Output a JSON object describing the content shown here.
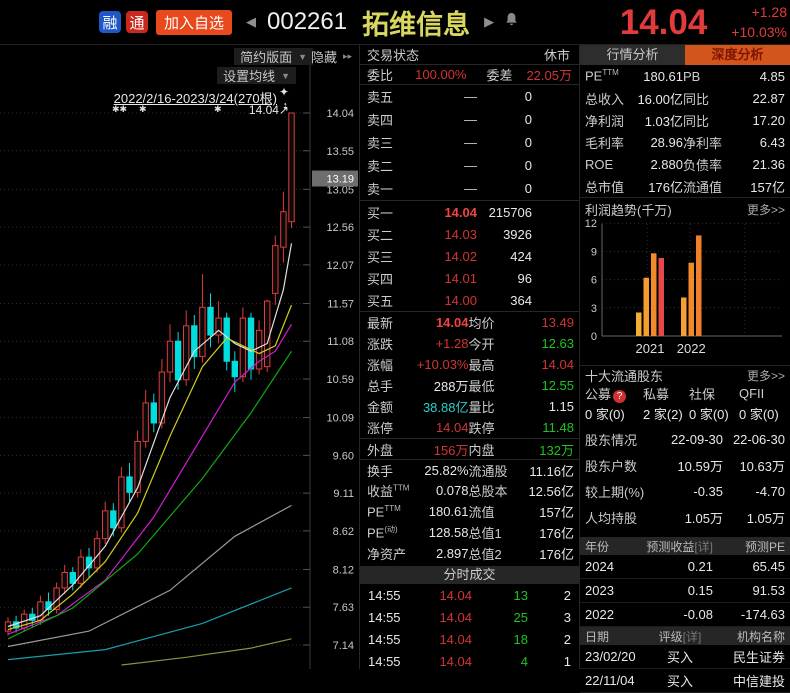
{
  "top_bar": {
    "badge_rong": "融",
    "badge_tong": "通",
    "add_watchlist": "加入自选",
    "prev_arrow": "◀",
    "next_arrow": "▶",
    "stock_code": "002261",
    "stock_name": "拓维信息",
    "price": "14.04",
    "change": "+1.28",
    "change_pct": "+10.03%"
  },
  "chart_panel": {
    "layout_btn": "简约版面",
    "layout_caret": "▼",
    "hide_btn": "隐藏",
    "hide_caret": "▸▸",
    "ma_btn": "设置均线",
    "ma_caret": "▼",
    "range_label": "2022/2/16-2023/3/24(270根)",
    "price_tag": "14.04↗",
    "star1": "✱✱",
    "star2": "✱",
    "star3": "✱",
    "sparkle": "✦",
    "updown": "↕"
  },
  "chart_data": [
    {
      "type": "candlestick",
      "title": "002261 拓维信息 日K 2022/2/16-2023/3/24(270根)",
      "ylim": [
        7.14,
        14.04
      ],
      "yticks": [
        14.04,
        13.55,
        13.05,
        12.56,
        12.07,
        11.57,
        11.08,
        10.59,
        10.09,
        9.6,
        9.11,
        8.62,
        8.12,
        7.63,
        7.14
      ],
      "axis_highlight": "13.19",
      "last_price_label": "14.04↗",
      "candles_ohlc_note": "each candle is [open, close, low, high]",
      "candles": [
        [
          7.32,
          7.44,
          7.26,
          7.5
        ],
        [
          7.44,
          7.36,
          7.3,
          7.52
        ],
        [
          7.36,
          7.54,
          7.32,
          7.6
        ],
        [
          7.54,
          7.46,
          7.38,
          7.62
        ],
        [
          7.46,
          7.7,
          7.4,
          7.78
        ],
        [
          7.7,
          7.6,
          7.52,
          7.82
        ],
        [
          7.6,
          7.88,
          7.55,
          7.95
        ],
        [
          7.88,
          8.08,
          7.8,
          8.18
        ],
        [
          8.08,
          7.94,
          7.85,
          8.15
        ],
        [
          7.94,
          8.28,
          7.88,
          8.38
        ],
        [
          8.28,
          8.14,
          8.02,
          8.4
        ],
        [
          8.14,
          8.52,
          8.08,
          8.62
        ],
        [
          8.52,
          8.88,
          8.45,
          9.0
        ],
        [
          8.88,
          8.66,
          8.55,
          8.98
        ],
        [
          8.66,
          9.32,
          8.6,
          9.45
        ],
        [
          9.32,
          9.12,
          9.0,
          9.5
        ],
        [
          9.12,
          9.78,
          9.05,
          9.92
        ],
        [
          9.78,
          10.28,
          9.7,
          10.45
        ],
        [
          10.28,
          10.02,
          9.9,
          10.4
        ],
        [
          10.02,
          10.68,
          9.95,
          10.85
        ],
        [
          10.68,
          11.08,
          10.55,
          11.3
        ],
        [
          11.08,
          10.58,
          10.45,
          11.2
        ],
        [
          10.58,
          11.28,
          10.5,
          11.48
        ],
        [
          11.28,
          10.88,
          10.72,
          11.42
        ],
        [
          10.88,
          11.52,
          10.8,
          11.95
        ],
        [
          11.52,
          11.16,
          11.0,
          11.7
        ],
        [
          11.16,
          11.38,
          11.05,
          11.6
        ],
        [
          11.38,
          10.82,
          10.7,
          11.45
        ],
        [
          10.82,
          10.62,
          10.42,
          10.95
        ],
        [
          10.62,
          11.38,
          10.55,
          11.52
        ],
        [
          11.38,
          10.72,
          10.58,
          11.45
        ],
        [
          10.72,
          11.22,
          10.65,
          11.35
        ],
        [
          10.75,
          11.6,
          10.68,
          11.62
        ],
        [
          11.7,
          12.32,
          11.55,
          12.45
        ],
        [
          12.3,
          12.76,
          12.1,
          13.02
        ],
        [
          12.63,
          14.04,
          12.55,
          14.04
        ]
      ],
      "ma_lines": [
        {
          "name": "MA5",
          "color": "#e0e0e0",
          "pts": [
            [
              0,
              7.38
            ],
            [
              4,
              7.52
            ],
            [
              8,
              7.92
            ],
            [
              12,
              8.42
            ],
            [
              16,
              9.18
            ],
            [
              20,
              10.35
            ],
            [
              23,
              10.95
            ],
            [
              26,
              11.22
            ],
            [
              28,
              11.05
            ],
            [
              30,
              10.95
            ],
            [
              32,
              11.05
            ],
            [
              34,
              11.75
            ],
            [
              35,
              12.35
            ]
          ]
        },
        {
          "name": "MA10",
          "color": "#cfcf1e",
          "pts": [
            [
              0,
              7.34
            ],
            [
              4,
              7.46
            ],
            [
              8,
              7.8
            ],
            [
              12,
              8.22
            ],
            [
              16,
              8.85
            ],
            [
              20,
              9.85
            ],
            [
              24,
              10.75
            ],
            [
              27,
              11.12
            ],
            [
              29,
              11.02
            ],
            [
              31,
              10.92
            ],
            [
              33,
              11.02
            ],
            [
              35,
              11.55
            ]
          ]
        },
        {
          "name": "MA20",
          "color": "#d020d0",
          "pts": [
            [
              0,
              7.28
            ],
            [
              6,
              7.52
            ],
            [
              12,
              7.98
            ],
            [
              18,
              8.8
            ],
            [
              24,
              9.85
            ],
            [
              28,
              10.55
            ],
            [
              31,
              10.82
            ],
            [
              33,
              10.95
            ],
            [
              35,
              11.3
            ]
          ]
        },
        {
          "name": "MA30",
          "color": "#12a812",
          "pts": [
            [
              0,
              7.22
            ],
            [
              8,
              7.62
            ],
            [
              16,
              8.32
            ],
            [
              24,
              9.3
            ],
            [
              30,
              10.15
            ],
            [
              35,
              10.95
            ]
          ]
        },
        {
          "name": "MA60",
          "color": "#9a9a9a",
          "pts": [
            [
              0,
              7.12
            ],
            [
              10,
              7.32
            ],
            [
              20,
              7.85
            ],
            [
              28,
              8.55
            ],
            [
              35,
              8.95
            ]
          ]
        },
        {
          "name": "MA120",
          "color": "#18a0a8",
          "pts": [
            [
              0,
              6.95
            ],
            [
              12,
              7.08
            ],
            [
              24,
              7.42
            ],
            [
              35,
              7.88
            ]
          ]
        },
        {
          "name": "MA250",
          "color": "#8f8f40",
          "pts": [
            [
              14,
              6.88
            ],
            [
              22,
              6.98
            ],
            [
              30,
              7.1
            ],
            [
              35,
              7.22
            ]
          ]
        }
      ],
      "up_color": "#e23b3b",
      "down_color": "#00dede"
    },
    {
      "type": "bar",
      "title": "利润趋势(千万)",
      "ylim": [
        0,
        12
      ],
      "yticks": [
        0,
        3,
        6,
        9,
        12
      ],
      "groups": [
        {
          "label": "2021",
          "values": [
            2.5,
            6.2,
            8.8,
            8.3
          ],
          "colors": [
            "#f5ae35",
            "#f59e2c",
            "#f28a2a",
            "#e84848"
          ]
        },
        {
          "label": "2022",
          "values": [
            4.1,
            7.8,
            10.7
          ],
          "colors": [
            "#f5a030",
            "#f28a2a",
            "#ef7f28"
          ]
        }
      ]
    }
  ],
  "order_panel": {
    "trade_status_label": "交易状态",
    "trade_status_value": "休市",
    "weibi_label": "委比",
    "weibi_value": "100.00%",
    "weicha_label": "委差",
    "weicha_value": "22.05万",
    "asks": [
      {
        "label": "卖五",
        "price": "—",
        "vol": "0"
      },
      {
        "label": "卖四",
        "price": "—",
        "vol": "0"
      },
      {
        "label": "卖三",
        "price": "—",
        "vol": "0"
      },
      {
        "label": "卖二",
        "price": "—",
        "vol": "0"
      },
      {
        "label": "卖一",
        "price": "—",
        "vol": "0"
      }
    ],
    "bids": [
      {
        "label": "买一",
        "price": "14.04",
        "vol": "215706",
        "hot": true
      },
      {
        "label": "买二",
        "price": "14.03",
        "vol": "3926",
        "hot": false
      },
      {
        "label": "买三",
        "price": "14.02",
        "vol": "424",
        "hot": false
      },
      {
        "label": "买四",
        "price": "14.01",
        "vol": "96",
        "hot": false
      },
      {
        "label": "买五",
        "price": "14.00",
        "vol": "364",
        "hot": false
      }
    ],
    "stats": [
      {
        "l1": "最新",
        "v1": "14.04",
        "c1": "v-red-hot",
        "l2": "均价",
        "v2": "13.49",
        "c2": "v-red",
        "sep": false
      },
      {
        "l1": "涨跌",
        "v1": "+1.28",
        "c1": "v-red",
        "l2": "今开",
        "v2": "12.63",
        "c2": "v-green",
        "sep": false
      },
      {
        "l1": "涨幅",
        "v1": "+10.03%",
        "c1": "v-red",
        "l2": "最高",
        "v2": "14.04",
        "c2": "v-red",
        "sep": false
      },
      {
        "l1": "总手",
        "v1": "288万",
        "c1": "v-white",
        "l2": "最低",
        "v2": "12.55",
        "c2": "v-green",
        "sep": false
      },
      {
        "l1": "金额",
        "v1": "38.88亿",
        "c1": "v-cyan",
        "l2": "量比",
        "v2": "1.15",
        "c2": "v-white",
        "sep": false
      },
      {
        "l1": "涨停",
        "v1": "14.04",
        "c1": "v-red",
        "l2": "跌停",
        "v2": "11.48",
        "c2": "v-green",
        "sep": false
      },
      {
        "l1": "外盘",
        "v1": "156万",
        "c1": "v-red",
        "l2": "内盘",
        "v2": "132万",
        "c2": "v-green",
        "sep": true
      },
      {
        "l1": "换手",
        "v1": "25.82%",
        "c1": "v-white",
        "l2": "流通股",
        "v2": "11.16亿",
        "c2": "v-white",
        "sep": true
      },
      {
        "l1": "收益",
        "sup1": "TTM",
        "v1": "0.078",
        "c1": "v-white",
        "l2": "总股本",
        "v2": "12.56亿",
        "c2": "v-white",
        "sep": false
      },
      {
        "l1": "PE",
        "sup1": "TTM",
        "v1": "180.61",
        "c1": "v-white",
        "l2": "流值",
        "v2": "157亿",
        "c2": "v-white",
        "sep": false
      },
      {
        "l1": "PE",
        "sup1": "(动)",
        "v1": "128.58",
        "c1": "v-white",
        "l2": "总值1",
        "v2": "176亿",
        "c2": "v-white",
        "sep": false
      },
      {
        "l1": "净资产",
        "v1": "2.897",
        "c1": "v-white",
        "l2": "总值2",
        "v2": "176亿",
        "c2": "v-white",
        "sep": false
      }
    ],
    "tick_header": "分时成交",
    "ticks": [
      {
        "time": "14:55",
        "price": "14.04",
        "vol": "13",
        "count": "2"
      },
      {
        "time": "14:55",
        "price": "14.04",
        "vol": "25",
        "count": "3"
      },
      {
        "time": "14:55",
        "price": "14.04",
        "vol": "18",
        "count": "2"
      },
      {
        "time": "14:55",
        "price": "14.04",
        "vol": "4",
        "count": "1"
      }
    ]
  },
  "analysis_panel": {
    "tabs": [
      {
        "label": "行情分析",
        "active": false
      },
      {
        "label": "深度分析",
        "active": true
      }
    ],
    "metrics": [
      {
        "l1": "PE",
        "sup1": "TTM",
        "v1": "180.61",
        "l2": "PB",
        "v2": "4.85"
      },
      {
        "l1": "总收入",
        "v1": "16.00亿",
        "l2": "同比",
        "v2": "22.87"
      },
      {
        "l1": "净利润",
        "v1": "1.03亿",
        "l2": "同比",
        "v2": "17.20"
      },
      {
        "l1": "毛利率",
        "v1": "28.96",
        "l2": "净利率",
        "v2": "6.43"
      },
      {
        "l1": "ROE",
        "v1": "2.880",
        "l2": "负债率",
        "v2": "21.36"
      },
      {
        "l1": "总市值",
        "v1": "176亿",
        "l2": "流通值",
        "v2": "157亿"
      }
    ],
    "profit_header": "利润趋势(千万)",
    "profit_more": "更多>>",
    "holders_header": "十大流通股东",
    "holders_more": "更多>>",
    "funds": [
      {
        "label": "公募",
        "badge": "?"
      },
      {
        "label": "私募",
        "badge": ""
      },
      {
        "label": "社保",
        "badge": ""
      },
      {
        "label": "QFII",
        "badge": ""
      }
    ],
    "fund_counts": [
      "0 家(0)",
      "2 家(2)",
      "0 家(0)",
      "0 家(0)"
    ],
    "holder_rows": [
      {
        "label": "股东情况",
        "v1": "22-09-30",
        "v2": "22-06-30"
      },
      {
        "label": "股东户数",
        "v1": "10.59万",
        "v2": "10.63万"
      },
      {
        "label": "较上期(%)",
        "v1": "-0.35",
        "v2": "-4.70"
      },
      {
        "label": "人均持股",
        "v1": "1.05万",
        "v2": "1.05万"
      }
    ],
    "forecast": {
      "h1": "年份",
      "h2": "预测收益",
      "h2_detail": "[详]",
      "h3": "预测PE",
      "rows": [
        [
          "2024",
          "0.21",
          "65.45"
        ],
        [
          "2023",
          "0.15",
          "91.53"
        ],
        [
          "2022",
          "-0.08",
          "-174.63"
        ]
      ]
    },
    "ratings": {
      "h1": "日期",
      "h2": "评级",
      "h2_detail": "[详]",
      "h3": "机构名称",
      "rows": [
        [
          "23/02/20",
          "买入",
          "民生证券"
        ],
        [
          "22/11/04",
          "买入",
          "中信建投"
        ]
      ]
    }
  }
}
